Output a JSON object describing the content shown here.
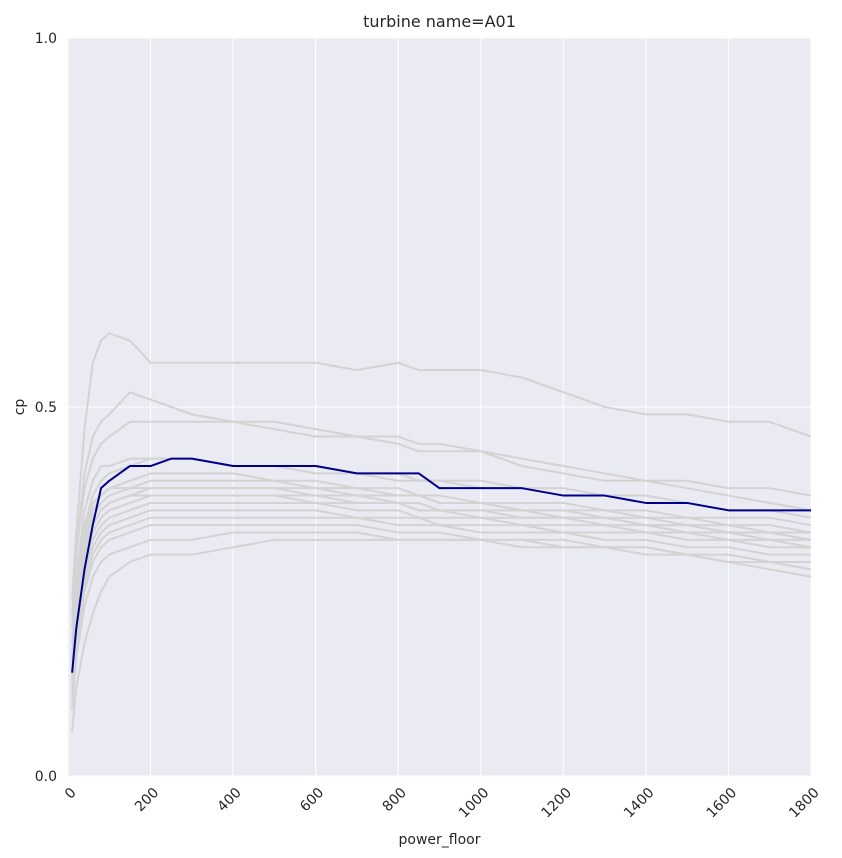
{
  "chart_data": {
    "type": "line",
    "title": "turbine name=A01",
    "xlabel": "power_floor",
    "ylabel": "cp",
    "xlim": [
      0,
      1800
    ],
    "ylim": [
      0.0,
      1.0
    ],
    "x_ticks": [
      0,
      200,
      400,
      600,
      800,
      1000,
      1200,
      1400,
      1600,
      1800
    ],
    "x_tick_labels": [
      "0",
      "200",
      "400",
      "600",
      "800",
      "1000",
      "1200",
      "1400",
      "1600",
      "1800"
    ],
    "y_ticks": [
      0.0,
      0.5,
      1.0
    ],
    "y_tick_labels": [
      "0.0",
      "0.5",
      "1.0"
    ],
    "grid": true,
    "legend": "none",
    "colors": {
      "plot_background": "#eaeaf2",
      "grid": "#ffffff",
      "highlight": "#00008b",
      "background_series": "#d3d3d3"
    },
    "x": [
      10,
      20,
      40,
      60,
      80,
      100,
      150,
      200,
      250,
      300,
      400,
      500,
      600,
      700,
      800,
      850,
      900,
      1000,
      1100,
      1200,
      1300,
      1400,
      1500,
      1600,
      1700,
      1800
    ],
    "series": [
      {
        "highlight": true,
        "values": [
          0.14,
          0.2,
          0.28,
          0.34,
          0.39,
          0.4,
          0.42,
          0.42,
          0.43,
          0.43,
          0.42,
          0.42,
          0.42,
          0.41,
          0.41,
          0.41,
          0.39,
          0.39,
          0.39,
          0.38,
          0.38,
          0.37,
          0.37,
          0.36,
          0.36,
          0.36
        ]
      },
      {
        "highlight": false,
        "values": [
          0.24,
          0.33,
          0.47,
          0.56,
          0.59,
          0.6,
          0.59,
          0.56,
          0.56,
          0.56,
          0.56,
          0.56,
          0.56,
          0.55,
          0.56,
          0.55,
          0.55,
          0.55,
          0.54,
          0.52,
          0.5,
          0.49,
          0.49,
          0.48,
          0.48,
          0.46
        ]
      },
      {
        "highlight": false,
        "values": [
          0.22,
          0.31,
          0.41,
          0.46,
          0.48,
          0.49,
          0.52,
          0.51,
          0.5,
          0.49,
          0.48,
          0.47,
          0.46,
          0.46,
          0.45,
          0.44,
          0.44,
          0.44,
          0.43,
          0.42,
          0.41,
          0.4,
          0.4,
          0.39,
          0.39,
          0.38
        ]
      },
      {
        "highlight": false,
        "values": [
          0.2,
          0.3,
          0.39,
          0.43,
          0.45,
          0.46,
          0.48,
          0.48,
          0.48,
          0.48,
          0.48,
          0.48,
          0.47,
          0.46,
          0.46,
          0.45,
          0.45,
          0.44,
          0.42,
          0.41,
          0.4,
          0.4,
          0.39,
          0.38,
          0.37,
          0.36
        ]
      },
      {
        "highlight": false,
        "values": [
          0.16,
          0.26,
          0.34,
          0.38,
          0.4,
          0.41,
          0.42,
          0.43,
          0.43,
          0.43,
          0.42,
          0.42,
          0.42,
          0.41,
          0.4,
          0.4,
          0.4,
          0.39,
          0.39,
          0.38,
          0.38,
          0.38,
          0.37,
          0.36,
          0.36,
          0.35
        ]
      },
      {
        "highlight": false,
        "values": [
          0.15,
          0.24,
          0.32,
          0.36,
          0.38,
          0.39,
          0.4,
          0.41,
          0.41,
          0.41,
          0.41,
          0.4,
          0.4,
          0.39,
          0.39,
          0.38,
          0.38,
          0.37,
          0.37,
          0.37,
          0.36,
          0.36,
          0.35,
          0.35,
          0.35,
          0.34
        ]
      },
      {
        "highlight": false,
        "values": [
          0.14,
          0.23,
          0.31,
          0.35,
          0.37,
          0.38,
          0.39,
          0.4,
          0.4,
          0.4,
          0.4,
          0.4,
          0.39,
          0.39,
          0.38,
          0.38,
          0.37,
          0.37,
          0.36,
          0.36,
          0.36,
          0.35,
          0.35,
          0.34,
          0.34,
          0.33
        ]
      },
      {
        "highlight": false,
        "values": [
          0.13,
          0.22,
          0.3,
          0.34,
          0.36,
          0.37,
          0.38,
          0.39,
          0.39,
          0.39,
          0.39,
          0.39,
          0.38,
          0.38,
          0.37,
          0.37,
          0.36,
          0.36,
          0.36,
          0.35,
          0.35,
          0.34,
          0.34,
          0.33,
          0.33,
          0.32
        ]
      },
      {
        "highlight": false,
        "values": [
          0.12,
          0.21,
          0.29,
          0.33,
          0.35,
          0.36,
          0.37,
          0.38,
          0.38,
          0.38,
          0.38,
          0.38,
          0.38,
          0.37,
          0.37,
          0.36,
          0.36,
          0.35,
          0.35,
          0.35,
          0.34,
          0.34,
          0.33,
          0.33,
          0.32,
          0.32
        ]
      },
      {
        "highlight": false,
        "values": [
          0.12,
          0.2,
          0.28,
          0.32,
          0.34,
          0.35,
          0.36,
          0.37,
          0.37,
          0.37,
          0.37,
          0.37,
          0.37,
          0.36,
          0.36,
          0.35,
          0.35,
          0.35,
          0.34,
          0.34,
          0.34,
          0.33,
          0.33,
          0.32,
          0.32,
          0.31
        ]
      },
      {
        "highlight": false,
        "values": [
          0.11,
          0.19,
          0.27,
          0.31,
          0.33,
          0.34,
          0.35,
          0.36,
          0.36,
          0.36,
          0.36,
          0.36,
          0.36,
          0.35,
          0.35,
          0.35,
          0.34,
          0.34,
          0.34,
          0.33,
          0.33,
          0.33,
          0.32,
          0.32,
          0.31,
          0.31
        ]
      },
      {
        "highlight": false,
        "values": [
          0.1,
          0.18,
          0.26,
          0.3,
          0.32,
          0.33,
          0.34,
          0.35,
          0.35,
          0.35,
          0.35,
          0.35,
          0.35,
          0.35,
          0.34,
          0.34,
          0.34,
          0.33,
          0.33,
          0.33,
          0.32,
          0.32,
          0.31,
          0.31,
          0.3,
          0.3
        ]
      },
      {
        "highlight": false,
        "values": [
          0.1,
          0.17,
          0.25,
          0.29,
          0.31,
          0.32,
          0.33,
          0.34,
          0.34,
          0.34,
          0.34,
          0.34,
          0.34,
          0.34,
          0.33,
          0.33,
          0.33,
          0.32,
          0.32,
          0.32,
          0.31,
          0.31,
          0.3,
          0.3,
          0.29,
          0.29
        ]
      },
      {
        "highlight": false,
        "values": [
          0.09,
          0.16,
          0.23,
          0.27,
          0.29,
          0.3,
          0.31,
          0.32,
          0.32,
          0.32,
          0.33,
          0.33,
          0.33,
          0.33,
          0.32,
          0.32,
          0.32,
          0.32,
          0.31,
          0.31,
          0.31,
          0.3,
          0.3,
          0.29,
          0.29,
          0.28
        ]
      },
      {
        "highlight": false,
        "values": [
          0.06,
          0.12,
          0.18,
          0.22,
          0.25,
          0.27,
          0.29,
          0.3,
          0.3,
          0.3,
          0.31,
          0.32,
          0.32,
          0.32,
          0.32,
          0.32,
          0.32,
          0.32,
          0.32,
          0.31,
          0.31,
          0.31,
          0.3,
          0.29,
          0.28,
          0.27
        ]
      },
      {
        "highlight": false,
        "values": [
          0.18,
          0.27,
          0.36,
          0.4,
          0.42,
          0.42,
          0.43,
          0.43,
          0.43,
          0.43,
          0.42,
          0.42,
          0.41,
          0.41,
          0.41,
          0.4,
          0.4,
          0.4,
          0.39,
          0.39,
          0.38,
          0.38,
          0.37,
          0.36,
          0.36,
          0.35
        ]
      },
      {
        "highlight": false,
        "values": [
          0.15,
          0.24,
          0.33,
          0.37,
          0.38,
          0.39,
          0.39,
          0.39,
          0.39,
          0.39,
          0.39,
          0.39,
          0.39,
          0.38,
          0.38,
          0.38,
          0.37,
          0.37,
          0.36,
          0.36,
          0.35,
          0.35,
          0.34,
          0.34,
          0.33,
          0.33
        ]
      },
      {
        "highlight": false,
        "values": [
          0.13,
          0.22,
          0.3,
          0.34,
          0.36,
          0.37,
          0.38,
          0.38,
          0.38,
          0.38,
          0.38,
          0.38,
          0.37,
          0.37,
          0.37,
          0.36,
          0.36,
          0.36,
          0.35,
          0.35,
          0.35,
          0.34,
          0.34,
          0.33,
          0.33,
          0.32
        ]
      }
    ]
  }
}
